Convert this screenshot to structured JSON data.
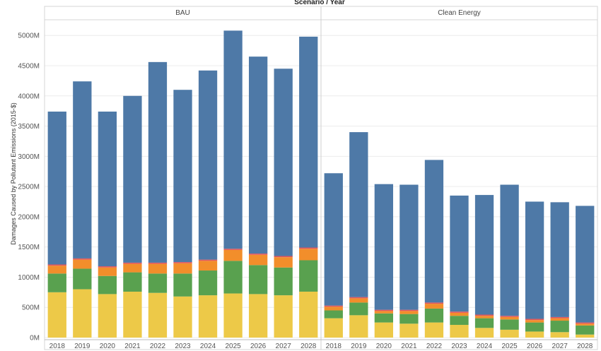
{
  "chart_data": {
    "type": "bar",
    "stacked": true,
    "title": "Scenario / Year",
    "ylabel": "Damages Caused by Pollutant Emissions (2015-$)",
    "ylim": [
      0,
      5200
    ],
    "yticks": [
      0,
      500,
      1000,
      1500,
      2000,
      2500,
      3000,
      3500,
      4000,
      4500,
      5000
    ],
    "ytick_labels": [
      "0M",
      "500M",
      "1000M",
      "1500M",
      "2000M",
      "2500M",
      "3000M",
      "3500M",
      "4000M",
      "4500M",
      "5000M"
    ],
    "grid": true,
    "colors": [
      "#edc948",
      "#59a14f",
      "#f28e2b",
      "#e15759",
      "#4e79a7"
    ],
    "panels": [
      {
        "name": "BAU",
        "categories": [
          "2018",
          "2019",
          "2020",
          "2021",
          "2022",
          "2023",
          "2024",
          "2025",
          "2026",
          "2027",
          "2028"
        ],
        "series": [
          {
            "values": [
              750,
              800,
              720,
              760,
              740,
              680,
              700,
              730,
              720,
              700,
              760
            ]
          },
          {
            "values": [
              310,
              340,
              300,
              320,
              320,
              380,
              410,
              540,
              480,
              460,
              520
            ]
          },
          {
            "values": [
              130,
              150,
              140,
              140,
              160,
              170,
              160,
              180,
              170,
              170,
              190
            ]
          },
          {
            "values": [
              20,
              20,
              20,
              20,
              20,
              20,
              20,
              20,
              20,
              20,
              20
            ]
          },
          {
            "values": [
              2530,
              2930,
              2560,
              2760,
              3320,
              2850,
              3130,
              3610,
              3260,
              3100,
              3490
            ]
          }
        ]
      },
      {
        "name": "Clean Energy",
        "categories": [
          "2018",
          "2019",
          "2020",
          "2021",
          "2022",
          "2023",
          "2024",
          "2025",
          "2026",
          "2027",
          "2028"
        ],
        "series": [
          {
            "values": [
              320,
              370,
              250,
              230,
              250,
              210,
              160,
              130,
              100,
              90,
              50
            ]
          },
          {
            "values": [
              130,
              210,
              150,
              160,
              230,
              150,
              160,
              170,
              150,
              190,
              150
            ]
          },
          {
            "values": [
              60,
              70,
              40,
              50,
              80,
              50,
              40,
              40,
              40,
              40,
              30
            ]
          },
          {
            "values": [
              20,
              20,
              20,
              20,
              20,
              20,
              20,
              20,
              20,
              20,
              20
            ]
          },
          {
            "values": [
              2190,
              2730,
              2080,
              2070,
              2360,
              1920,
              1980,
              2170,
              1940,
              1900,
              1930
            ]
          }
        ]
      }
    ]
  }
}
